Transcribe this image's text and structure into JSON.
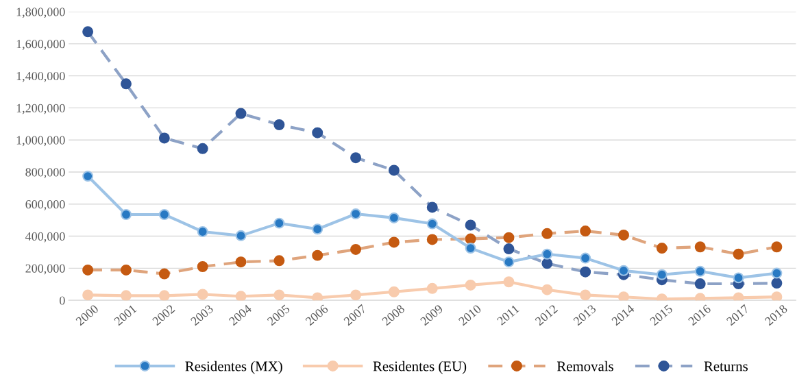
{
  "chart_data": {
    "type": "line",
    "categories": [
      "2000",
      "2001",
      "2002",
      "2003",
      "2004",
      "2005",
      "2006",
      "2007",
      "2008",
      "2009",
      "2010",
      "2011",
      "2012",
      "2013",
      "2014",
      "2015",
      "2016",
      "2017",
      "2018"
    ],
    "series": [
      {
        "name": "Residentes (MX)",
        "color": "#9dc3e6",
        "line_style": "solid",
        "values": [
          774000,
          535000,
          535000,
          428000,
          403000,
          481000,
          444000,
          539000,
          514000,
          477000,
          325000,
          239000,
          288000,
          263000,
          185000,
          160000,
          181000,
          140000,
          169000
        ]
      },
      {
        "name": "Residentes (EU)",
        "color": "#f8cbad",
        "line_style": "solid",
        "values": [
          33000,
          29000,
          29000,
          37000,
          25000,
          33000,
          16000,
          33000,
          53000,
          74000,
          95000,
          115000,
          66000,
          33000,
          21000,
          8000,
          12000,
          16000,
          21000
        ]
      },
      {
        "name": "Removals",
        "color": "#c55a11",
        "line_style": "dashed",
        "values": [
          189000,
          189000,
          165000,
          210000,
          239000,
          247000,
          280000,
          317000,
          362000,
          379000,
          383000,
          391000,
          416000,
          432000,
          407000,
          325000,
          333000,
          288000,
          333000
        ]
      },
      {
        "name": "Returns",
        "color": "#2f5597",
        "line_style": "dashed",
        "values": [
          1675000,
          1350000,
          1012000,
          946000,
          1165000,
          1095000,
          1045000,
          889000,
          811000,
          580000,
          469000,
          321000,
          230000,
          177000,
          160000,
          128000,
          103000,
          103000,
          107000
        ]
      }
    ],
    "ylim": [
      0,
      1800000
    ],
    "yticks": [
      {
        "value": 0,
        "label": "0"
      },
      {
        "value": 200000,
        "label": "200,000"
      },
      {
        "value": 400000,
        "label": "400,000"
      },
      {
        "value": 600000,
        "label": "600,000"
      },
      {
        "value": 800000,
        "label": "800,000"
      },
      {
        "value": 1000000,
        "label": "1,000,000"
      },
      {
        "value": 1200000,
        "label": "1,200,000"
      },
      {
        "value": 1400000,
        "label": "1,400,000"
      },
      {
        "value": 1600000,
        "label": "1,600,000"
      },
      {
        "value": 1800000,
        "label": "1,800,000"
      }
    ],
    "grid": "y",
    "legend": "bottom",
    "marker": "circle"
  }
}
